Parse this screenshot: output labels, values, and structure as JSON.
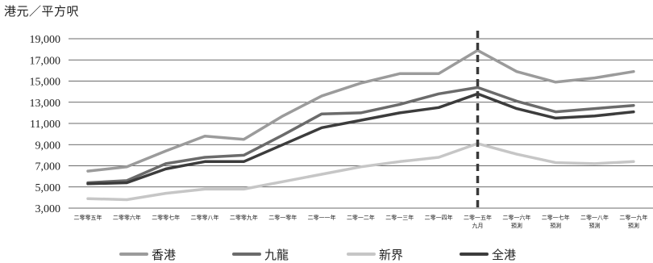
{
  "chart_data": {
    "type": "line",
    "ylabel": "港元／平方呎",
    "ylim": [
      3000,
      19000
    ],
    "yticks": [
      "19,000",
      "17,000",
      "15,000",
      "13,000",
      "11,000",
      "9,000",
      "7,000",
      "5,000",
      "3,000"
    ],
    "ytick_values": [
      19000,
      17000,
      15000,
      13000,
      11000,
      9000,
      7000,
      5000,
      3000
    ],
    "categories": [
      [
        "二零零五年"
      ],
      [
        "二零零六年"
      ],
      [
        "二零零七年"
      ],
      [
        "二零零八年"
      ],
      [
        "二零零九年"
      ],
      [
        "二零一零年"
      ],
      [
        "二零一一年"
      ],
      [
        "二零一二年"
      ],
      [
        "二零一三年"
      ],
      [
        "二零一四年"
      ],
      [
        "二零一五年",
        "九月"
      ],
      [
        "二零一六年",
        "預測"
      ],
      [
        "二零一七年",
        "預測"
      ],
      [
        "二零一八年",
        "預測"
      ],
      [
        "二零一九年",
        "預測"
      ]
    ],
    "forecast_divider_after_index": 10,
    "grid": "horizontal",
    "legend_position": "bottom",
    "series": [
      {
        "name": "香港",
        "color": "#9b9b9b",
        "values": [
          6500,
          6900,
          8400,
          9800,
          9500,
          11700,
          13600,
          14800,
          15700,
          15700,
          17900,
          15900,
          14900,
          15300,
          15900
        ]
      },
      {
        "name": "九龍",
        "color": "#6b6b6b",
        "values": [
          5400,
          5600,
          7200,
          7800,
          8000,
          9900,
          11900,
          12000,
          12800,
          13800,
          14400,
          13100,
          12100,
          12400,
          12700
        ]
      },
      {
        "name": "新界",
        "color": "#c6c6c6",
        "values": [
          3900,
          3800,
          4400,
          4800,
          4800,
          5500,
          6200,
          6900,
          7400,
          7800,
          9100,
          8100,
          7300,
          7200,
          7400
        ]
      },
      {
        "name": "全港",
        "color": "#3c3c3c",
        "values": [
          5300,
          5400,
          6700,
          7400,
          7400,
          9000,
          10600,
          11300,
          12000,
          12500,
          13800,
          12400,
          11500,
          11700,
          12100
        ]
      }
    ]
  }
}
